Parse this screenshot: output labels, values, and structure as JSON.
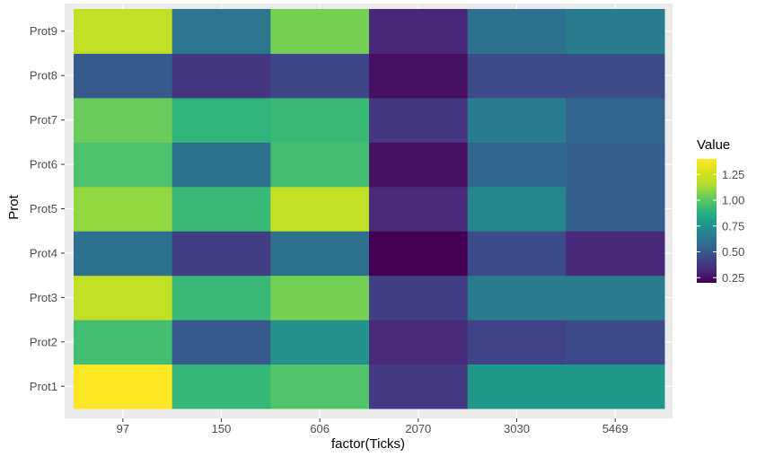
{
  "chart_data": {
    "type": "heatmap",
    "title": "",
    "xlabel": "factor(Ticks)",
    "ylabel": "Prot",
    "x": [
      "97",
      "150",
      "606",
      "2070",
      "3030",
      "5469"
    ],
    "y": [
      "Prot1",
      "Prot2",
      "Prot3",
      "Prot4",
      "Prot5",
      "Prot6",
      "Prot7",
      "Prot8",
      "Prot9"
    ],
    "values": [
      [
        1.4,
        0.92,
        0.98,
        0.38,
        0.78,
        0.78
      ],
      [
        0.95,
        0.5,
        0.75,
        0.33,
        0.42,
        0.45
      ],
      [
        1.2,
        0.93,
        1.05,
        0.4,
        0.65,
        0.65
      ],
      [
        0.6,
        0.4,
        0.6,
        0.2,
        0.45,
        0.32
      ],
      [
        1.1,
        0.93,
        1.2,
        0.33,
        0.7,
        0.53
      ],
      [
        0.97,
        0.6,
        0.95,
        0.25,
        0.55,
        0.53
      ],
      [
        1.03,
        0.9,
        0.93,
        0.37,
        0.65,
        0.55
      ],
      [
        0.5,
        0.37,
        0.43,
        0.25,
        0.45,
        0.45
      ],
      [
        1.2,
        0.62,
        1.05,
        0.32,
        0.6,
        0.65
      ]
    ],
    "legend": {
      "title": "Value",
      "ticks": [
        1.25,
        1.0,
        0.75,
        0.5,
        0.25
      ],
      "tick_labels": [
        "1.25",
        "1.00",
        "0.75",
        "0.50",
        "0.25"
      ],
      "range": [
        0.2,
        1.4
      ],
      "placement": "right"
    },
    "colorscale": "viridis",
    "grid": true,
    "panel_background": "#ebebeb"
  }
}
